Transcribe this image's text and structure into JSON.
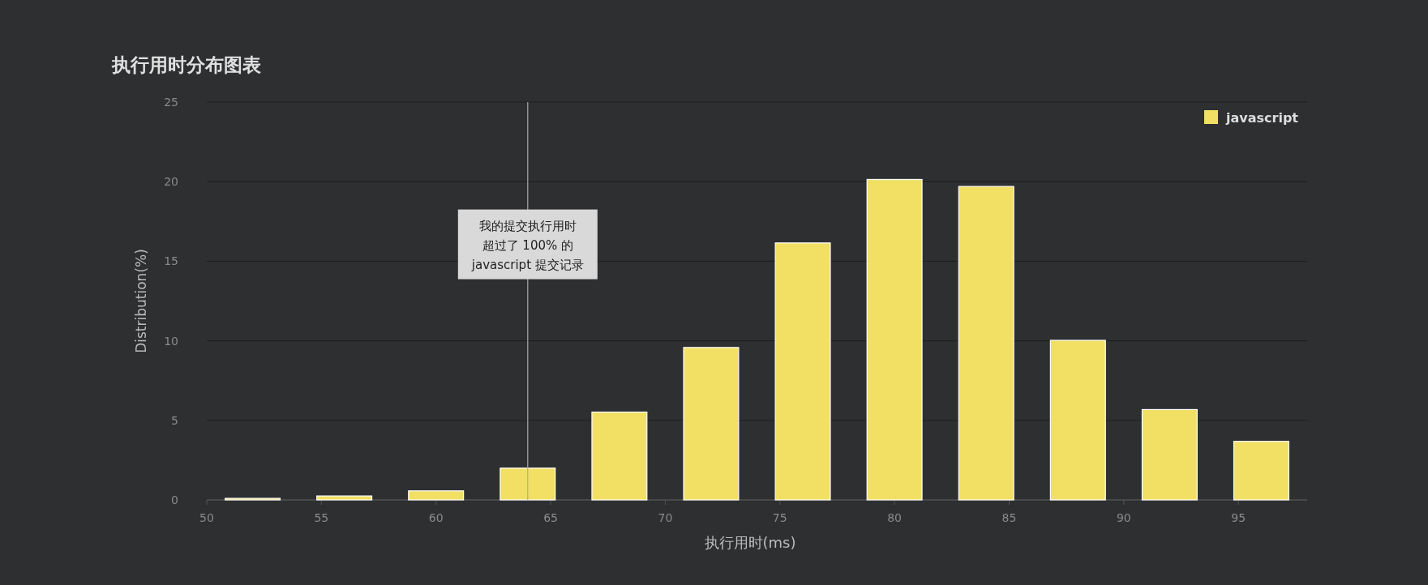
{
  "chart_data": {
    "type": "bar",
    "title": "执行用时分布图表",
    "xlabel": "执行用时(ms)",
    "ylabel": "Distribution(%)",
    "x": [
      52,
      56,
      60,
      64,
      68,
      72,
      76,
      80,
      84,
      88,
      92,
      96
    ],
    "series": [
      {
        "name": "javascript",
        "color": "#f2e064",
        "values": [
          0.1,
          0.25,
          0.57,
          2.0,
          5.52,
          9.58,
          16.15,
          20.14,
          19.7,
          10.03,
          5.68,
          3.68
        ]
      }
    ],
    "xlim": [
      50,
      98
    ],
    "xticks": [
      50,
      55,
      60,
      65,
      70,
      75,
      80,
      85,
      90,
      95
    ],
    "ylim": [
      0,
      25
    ],
    "yticks": [
      0,
      5,
      10,
      15,
      20,
      25
    ],
    "ref_lines": [
      {
        "axis": "x",
        "value": 64,
        "color": "#aaaaaa"
      }
    ],
    "annotations": [
      "我的提交执行用时",
      "超过了 100% 的",
      "javascript 提交记录"
    ],
    "grid": "y",
    "legend": "top right"
  }
}
